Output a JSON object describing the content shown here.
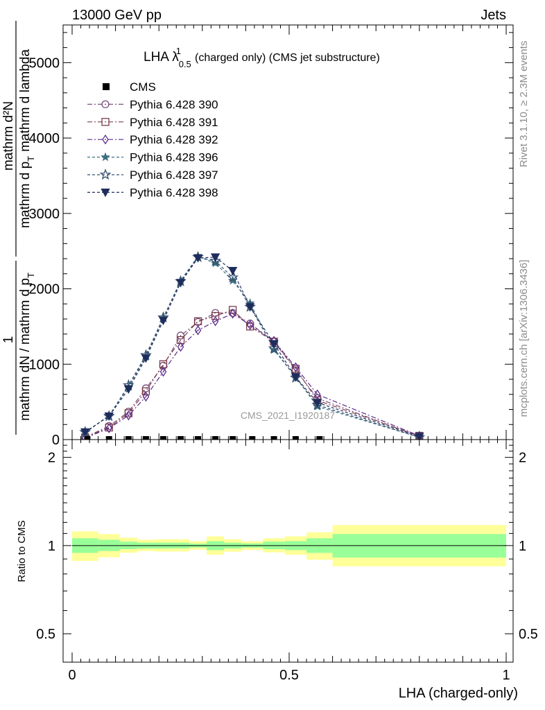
{
  "header": {
    "left": "13000 GeV pp",
    "right": "Jets"
  },
  "side_labels": {
    "rivet": "Rivet 3.1.10, ≥ 2.3M events",
    "mcplots": "mcplots.cern.ch [arXiv:1306.3436]"
  },
  "watermark": "CMS_2021_I1920187",
  "chart_data": [
    {
      "type": "line",
      "title_main": "LHA λ",
      "title_sup": "1",
      "title_sub": "0.5",
      "title_rest": "(charged only) (CMS jet substructure)",
      "ylabel_numerator": "mathrm d²N",
      "ylabel_den_a": "mathrm d p",
      "ylabel_den_a_sub": "T",
      "ylabel_den_b": "mathrm d lambda",
      "ylabel_prefactor_num": "1",
      "ylabel_prefactor_den": "mathrm dN / mathrm d p",
      "ylabel_prefactor_sub": "T",
      "ylim": [
        0,
        5500
      ],
      "yticks": [
        0,
        1000,
        2000,
        3000,
        4000,
        5000
      ],
      "ytick_labels": [
        "0",
        "1000",
        "2000",
        "3000",
        "4000",
        "5000"
      ],
      "xlim": [
        0,
        1
      ],
      "reference": {
        "name": "CMS",
        "x": [
          0.035,
          0.085,
          0.13,
          0.17,
          0.21,
          0.25,
          0.29,
          0.33,
          0.37,
          0.415,
          0.465,
          0.515,
          0.57
        ],
        "values": [
          0,
          0,
          0,
          0,
          0,
          0,
          0,
          0,
          0,
          0,
          0,
          0,
          0
        ]
      },
      "x": [
        0.03,
        0.085,
        0.13,
        0.17,
        0.21,
        0.25,
        0.29,
        0.33,
        0.37,
        0.41,
        0.465,
        0.515,
        0.565,
        0.8
      ],
      "series": [
        {
          "name": "Pythia 6.428 390",
          "color": "#7a4f7a",
          "marker": "circle-open",
          "dash": "7,3,2,3",
          "values": [
            30,
            180,
            370,
            680,
            980,
            1380,
            1560,
            1680,
            1680,
            1540,
            1300,
            920,
            550,
            40
          ]
        },
        {
          "name": "Pythia 6.428 391",
          "color": "#7a3c4c",
          "marker": "square-open",
          "dash": "7,3,2,3",
          "values": [
            30,
            160,
            350,
            640,
            1000,
            1320,
            1570,
            1640,
            1720,
            1500,
            1300,
            940,
            520,
            50
          ]
        },
        {
          "name": "Pythia 6.428 392",
          "color": "#5a2a8a",
          "marker": "diamond-open",
          "dash": "7,3,2,3",
          "values": [
            20,
            150,
            320,
            570,
            900,
            1230,
            1450,
            1570,
            1670,
            1520,
            1310,
            960,
            600,
            50
          ]
        },
        {
          "name": "Pythia 6.428 396",
          "color": "#3f6f80",
          "marker": "star-filled",
          "dash": "4,3",
          "values": [
            90,
            320,
            700,
            1100,
            1610,
            2110,
            2430,
            2340,
            2110,
            1810,
            1190,
            830,
            440,
            30
          ]
        },
        {
          "name": "Pythia 6.428 397",
          "color": "#35506f",
          "marker": "star-open",
          "dash": "4,3",
          "values": [
            100,
            310,
            720,
            1120,
            1620,
            2100,
            2420,
            2370,
            2150,
            1760,
            1210,
            820,
            460,
            30
          ]
        },
        {
          "name": "Pythia 6.428 398",
          "color": "#1e2d5c",
          "marker": "triangle-down-filled",
          "dash": "4,3",
          "values": [
            100,
            310,
            670,
            1080,
            1580,
            2080,
            2410,
            2420,
            2240,
            1760,
            1270,
            830,
            490,
            40
          ]
        }
      ]
    },
    {
      "type": "area",
      "ylabel": "Ratio to CMS",
      "xlabel": "LHA (charged-only)",
      "xlim": [
        0,
        1
      ],
      "ylim": [
        0.4,
        2.3
      ],
      "log_y": true,
      "yticks": [
        0.5,
        1,
        2
      ],
      "ytick_labels": [
        "0.5",
        "1",
        "2"
      ],
      "xticks": [
        0,
        0.5,
        1
      ],
      "xtick_labels": [
        "0",
        "0.5",
        "1"
      ],
      "bins": [
        {
          "lo": 0.0,
          "hi": 0.06,
          "in_lo": 0.944,
          "in_hi": 1.059,
          "out_lo": 0.886,
          "out_hi": 1.118
        },
        {
          "lo": 0.06,
          "hi": 0.11,
          "in_lo": 0.958,
          "in_hi": 1.047,
          "out_lo": 0.912,
          "out_hi": 1.095
        },
        {
          "lo": 0.11,
          "hi": 0.15,
          "in_lo": 0.972,
          "in_hi": 1.031,
          "out_lo": 0.945,
          "out_hi": 1.064
        },
        {
          "lo": 0.15,
          "hi": 0.19,
          "in_lo": 0.977,
          "in_hi": 1.023,
          "out_lo": 0.958,
          "out_hi": 1.047
        },
        {
          "lo": 0.19,
          "hi": 0.23,
          "in_lo": 0.977,
          "in_hi": 1.023,
          "out_lo": 0.954,
          "out_hi": 1.051
        },
        {
          "lo": 0.23,
          "hi": 0.27,
          "in_lo": 0.978,
          "in_hi": 1.023,
          "out_lo": 0.955,
          "out_hi": 1.051
        },
        {
          "lo": 0.27,
          "hi": 0.31,
          "in_lo": 0.985,
          "in_hi": 1.015,
          "out_lo": 0.968,
          "out_hi": 1.035
        },
        {
          "lo": 0.31,
          "hi": 0.35,
          "in_lo": 0.965,
          "in_hi": 1.035,
          "out_lo": 0.93,
          "out_hi": 1.075
        },
        {
          "lo": 0.35,
          "hi": 0.39,
          "in_lo": 0.977,
          "in_hi": 1.023,
          "out_lo": 0.953,
          "out_hi": 1.051
        },
        {
          "lo": 0.39,
          "hi": 0.44,
          "in_lo": 0.984,
          "in_hi": 1.017,
          "out_lo": 0.966,
          "out_hi": 1.035
        },
        {
          "lo": 0.44,
          "hi": 0.49,
          "in_lo": 0.972,
          "in_hi": 1.031,
          "out_lo": 0.948,
          "out_hi": 1.059
        },
        {
          "lo": 0.49,
          "hi": 0.54,
          "in_lo": 0.965,
          "in_hi": 1.036,
          "out_lo": 0.93,
          "out_hi": 1.075
        },
        {
          "lo": 0.54,
          "hi": 0.6,
          "in_lo": 0.944,
          "in_hi": 1.059,
          "out_lo": 0.895,
          "out_hi": 1.11
        },
        {
          "lo": 0.6,
          "hi": 1.0,
          "in_lo": 0.91,
          "in_hi": 1.095,
          "out_lo": 0.85,
          "out_hi": 1.175
        }
      ]
    }
  ]
}
